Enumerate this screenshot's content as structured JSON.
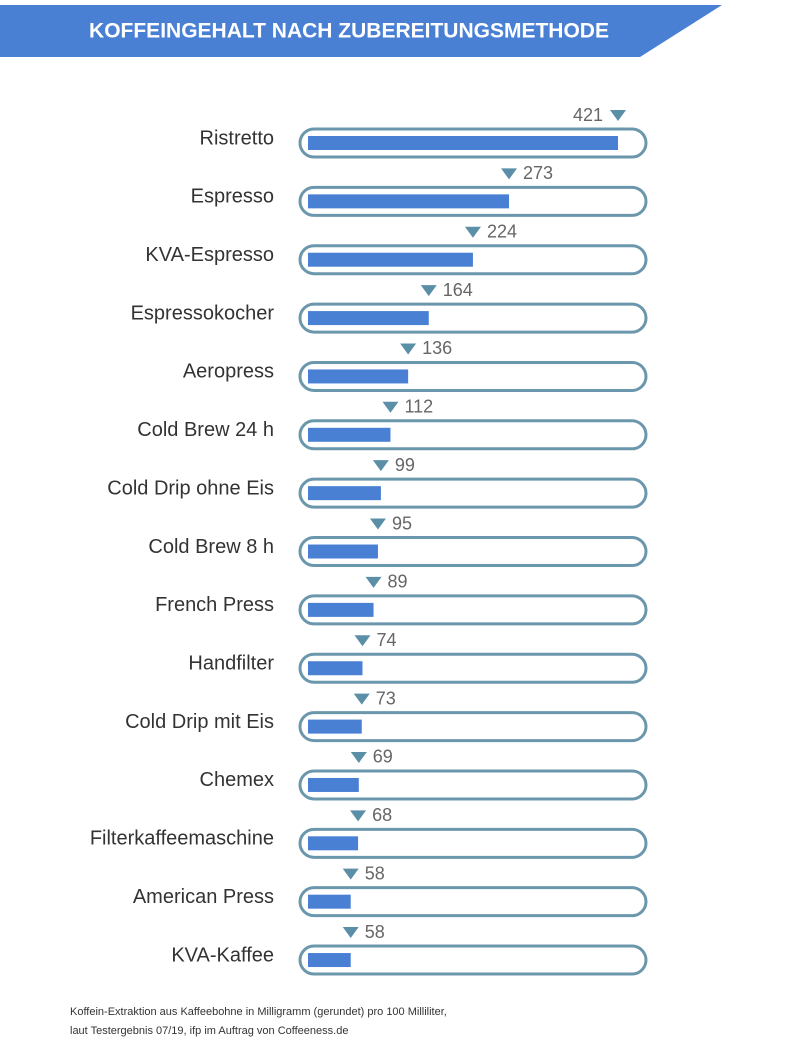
{
  "chart_data": {
    "type": "bar",
    "orientation": "horizontal",
    "title": "KOFFEINGEHALT NACH ZUBEREITUNGSMETHODE",
    "categories": [
      "Ristretto",
      "Espresso",
      "KVA-Espresso",
      "Espressokocher",
      "Aeropress",
      "Cold Brew 24 h",
      "Cold Drip ohne Eis",
      "Cold Brew 8 h",
      "French Press",
      "Handfilter",
      "Cold Drip mit Eis",
      "Chemex",
      "Filterkaffeemaschine",
      "American Press",
      "KVA-Kaffee"
    ],
    "values": [
      421,
      273,
      224,
      164,
      136,
      112,
      99,
      95,
      89,
      74,
      73,
      69,
      68,
      58,
      58
    ],
    "color": "#4a80d4",
    "footnote": [
      "Koffein-Extraktion aus Kaffeebohne in Milligramm (gerundet) pro 100 Milliliter,",
      "laut Testergebnis 07/19, ifp im Auftrag von Coffeeness.de"
    ]
  }
}
